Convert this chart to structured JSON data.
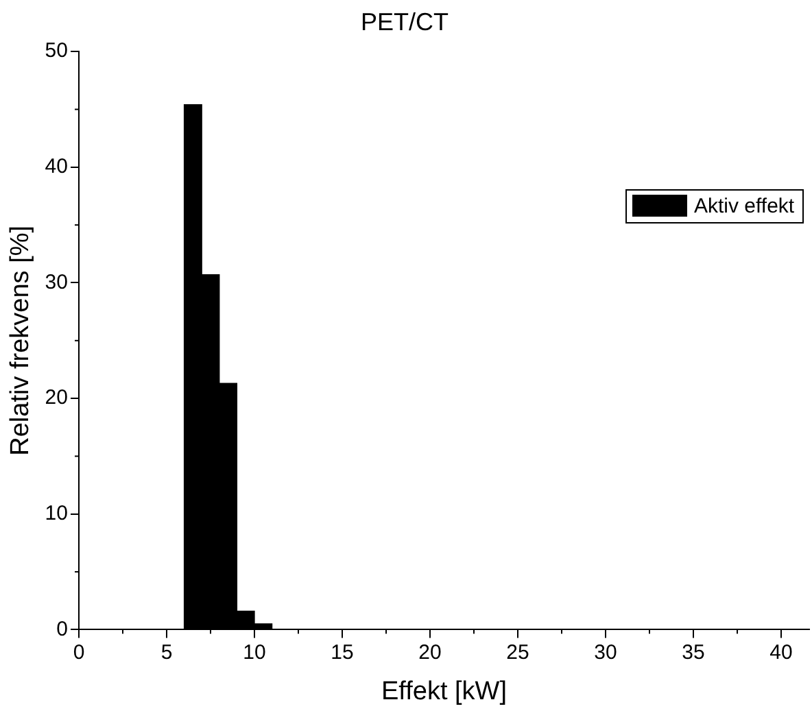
{
  "chart_data": {
    "type": "histogram",
    "title": "PET/CT",
    "xlabel": "Effekt [kW]",
    "ylabel": "Relativ frekvens [%]",
    "bins": [
      6,
      7,
      8,
      9,
      10,
      11
    ],
    "series": [
      {
        "name": "Aktiv effekt",
        "color": "#000000",
        "values": [
          45.4,
          30.7,
          21.3,
          1.6,
          0.5
        ]
      }
    ],
    "xlim": [
      0,
      41.6
    ],
    "xticks": [
      0,
      5,
      10,
      15,
      20,
      25,
      30,
      35,
      40
    ],
    "ylim": [
      0,
      50
    ],
    "yticks": [
      0,
      10,
      20,
      30,
      40,
      50
    ],
    "grid": false,
    "legend": "top right"
  }
}
